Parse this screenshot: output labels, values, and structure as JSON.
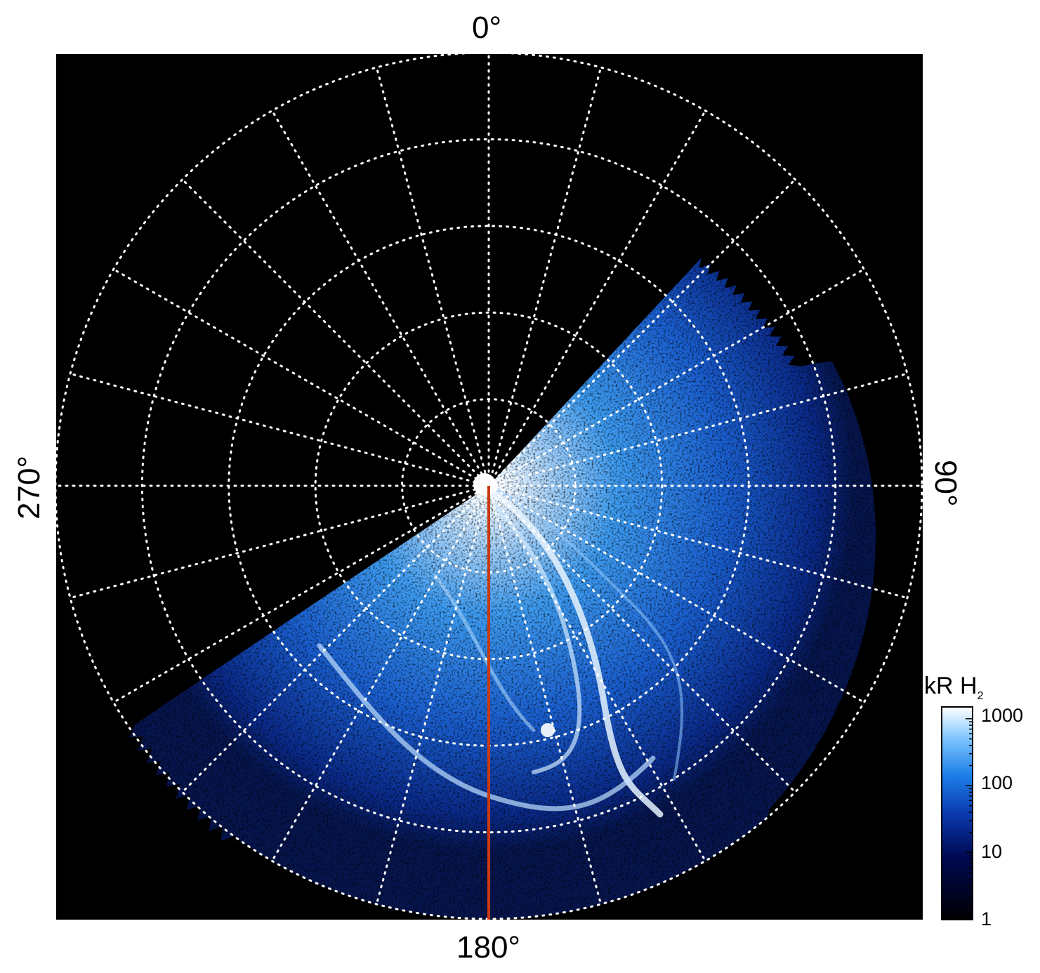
{
  "figure": {
    "azimuth_labels": {
      "top": "0°",
      "right": "90°",
      "bottom": "180°",
      "left": "270°"
    },
    "colorbar": {
      "unit": "kR H",
      "unit_subscript": "2",
      "ticks": [
        "1000",
        "100",
        "10",
        "1"
      ],
      "scale": "log",
      "range": [
        1,
        1500
      ]
    },
    "colors": {
      "background": "#000000",
      "grid": "#ffffff",
      "meridian_line": "#c83a12",
      "aurora_bright": "#e8f4ff",
      "aurora_mid": "#2f8fe8",
      "aurora_dim": "#0b2a8a"
    },
    "grid": {
      "style": "dotted",
      "meridians_deg_step": 15,
      "latitude_circles": 5
    }
  }
}
